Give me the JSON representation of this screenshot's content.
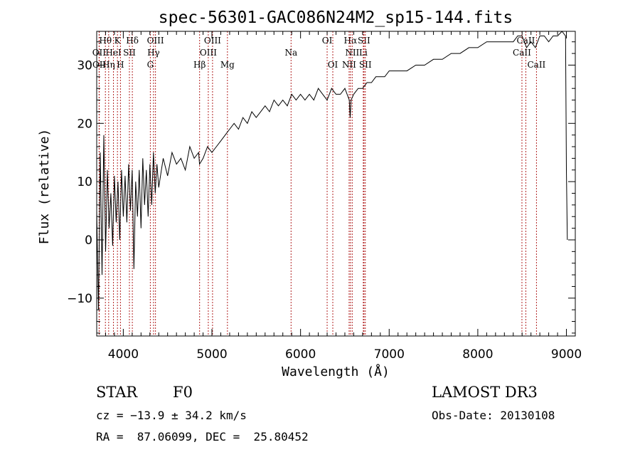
{
  "chart_data": {
    "type": "line",
    "title": "spec-56301-GAC086N24M2_sp15-144.fits",
    "xlabel": "Wavelength (Å)",
    "ylabel": "Flux (relative)",
    "xlim": [
      3700,
      9100
    ],
    "ylim": [
      -16.5,
      35.8
    ],
    "xticks": [
      4000,
      5000,
      6000,
      7000,
      8000,
      9000
    ],
    "yticks": [
      -10,
      0,
      10,
      20,
      30
    ],
    "series": [
      {
        "name": "spectrum",
        "x": [
          3700,
          3720,
          3740,
          3760,
          3780,
          3800,
          3820,
          3840,
          3860,
          3880,
          3900,
          3920,
          3940,
          3960,
          3980,
          4000,
          4020,
          4040,
          4060,
          4080,
          4100,
          4120,
          4140,
          4160,
          4180,
          4200,
          4220,
          4240,
          4260,
          4280,
          4300,
          4320,
          4340,
          4360,
          4380,
          4400,
          4450,
          4500,
          4550,
          4600,
          4650,
          4700,
          4750,
          4800,
          4850,
          4860,
          4900,
          4950,
          5000,
          5050,
          5100,
          5150,
          5200,
          5250,
          5300,
          5350,
          5400,
          5450,
          5500,
          5550,
          5600,
          5650,
          5700,
          5750,
          5800,
          5850,
          5900,
          5950,
          6000,
          6050,
          6100,
          6150,
          6200,
          6250,
          6300,
          6350,
          6400,
          6450,
          6500,
          6550,
          6560,
          6570,
          6600,
          6650,
          6700,
          6750,
          6800,
          6850,
          6900,
          6950,
          7000,
          7100,
          7200,
          7300,
          7400,
          7500,
          7600,
          7700,
          7800,
          7900,
          8000,
          8100,
          8200,
          8300,
          8400,
          8450,
          8500,
          8550,
          8600,
          8650,
          8700,
          8750,
          8800,
          8850,
          8900,
          8950,
          8990,
          9000,
          9010
        ],
        "y": [
          5,
          -12,
          15,
          -6,
          18,
          -2,
          12,
          2,
          8,
          -1,
          11,
          3,
          10,
          0,
          12,
          4,
          11,
          3,
          13,
          5,
          12,
          -5,
          10,
          4,
          12,
          2,
          14,
          6,
          12,
          4,
          13,
          6,
          15,
          8,
          13,
          9,
          14,
          11,
          15,
          13,
          14,
          12,
          16,
          14,
          15,
          13,
          14,
          16,
          15,
          16,
          17,
          18,
          19,
          20,
          19,
          21,
          20,
          22,
          21,
          22,
          23,
          22,
          24,
          23,
          24,
          23,
          25,
          24,
          25,
          24,
          25,
          24,
          26,
          25,
          24,
          26,
          25,
          25,
          26,
          24,
          21,
          24,
          25,
          26,
          26,
          27,
          27,
          28,
          28,
          28,
          29,
          29,
          29,
          30,
          30,
          31,
          31,
          32,
          32,
          33,
          33,
          34,
          34,
          34,
          34,
          35,
          35,
          33,
          34,
          33,
          35,
          35,
          34,
          35,
          35,
          36,
          35,
          12,
          0
        ]
      }
    ],
    "line_markers": [
      {
        "label": "Hθ",
        "x": 3798,
        "row": 0
      },
      {
        "label": "K",
        "x": 3934,
        "row": 0
      },
      {
        "label": "Hδ",
        "x": 4102,
        "row": 0
      },
      {
        "label": "OIII",
        "x": 4363,
        "row": 0
      },
      {
        "label": "OIII",
        "x": 5007,
        "row": 0
      },
      {
        "label": "OI",
        "x": 6300,
        "row": 0
      },
      {
        "label": "Hα",
        "x": 6563,
        "row": 0
      },
      {
        "label": "SII",
        "x": 6716,
        "row": 0
      },
      {
        "label": "CaII",
        "x": 8542,
        "row": 0
      },
      {
        "label": "OII",
        "x": 3727,
        "row": 1
      },
      {
        "label": "HeI",
        "x": 3889,
        "row": 1
      },
      {
        "label": "SII",
        "x": 4069,
        "row": 1
      },
      {
        "label": "Hγ",
        "x": 4341,
        "row": 1
      },
      {
        "label": "OIII",
        "x": 4959,
        "row": 1
      },
      {
        "label": "Na",
        "x": 5893,
        "row": 1
      },
      {
        "label": "NII",
        "x": 6583,
        "row": 1
      },
      {
        "label": "Li",
        "x": 6708,
        "row": 1
      },
      {
        "label": "CaII",
        "x": 8498,
        "row": 1
      },
      {
        "label": "OII",
        "x": 3729,
        "row": 2
      },
      {
        "label": "Hη",
        "x": 3835,
        "row": 2
      },
      {
        "label": "H",
        "x": 3968,
        "row": 2
      },
      {
        "label": "G",
        "x": 4305,
        "row": 2
      },
      {
        "label": "Hβ",
        "x": 4861,
        "row": 2
      },
      {
        "label": "Mg",
        "x": 5175,
        "row": 2
      },
      {
        "label": "OI",
        "x": 6364,
        "row": 2
      },
      {
        "label": "NII",
        "x": 6548,
        "row": 2
      },
      {
        "label": "SII",
        "x": 6731,
        "row": 2
      },
      {
        "label": "CaII",
        "x": 8662,
        "row": 2
      }
    ]
  },
  "info": {
    "object_class": "STAR",
    "subclass": "F0",
    "survey": "LAMOST DR3",
    "redshift": "cz = −13.9 ± 34.2 km/s",
    "obs_date": "Obs-Date: 20130108",
    "coords": "RA =  87.06099, DEC =  25.80452"
  },
  "colors": {
    "marker": "#b22222",
    "ink": "#000000"
  }
}
